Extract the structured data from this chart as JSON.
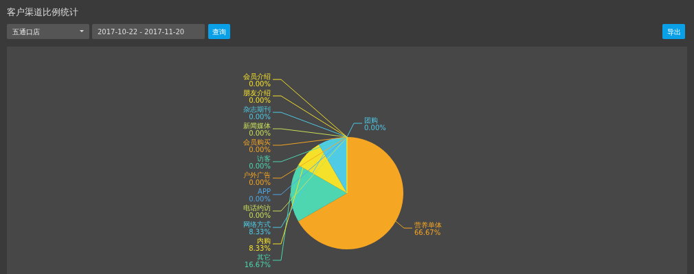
{
  "chart_data": {
    "type": "pie",
    "title": "客户渠道比例统计",
    "annotations": [
      "五通口店",
      "2017-10-22 - 2017-11-20",
      "查询",
      "导出"
    ],
    "categories": [
      "团购",
      "营养单体",
      "其它",
      "内购",
      "网络方式",
      "电话约访",
      "APP",
      "户外广告",
      "访客",
      "会员购买",
      "新闻媒体",
      "杂志期刊",
      "朋友介绍",
      "会员介绍"
    ],
    "values": [
      0,
      66.67,
      16.67,
      8.33,
      8.33,
      0,
      0,
      0,
      0,
      0,
      0,
      0,
      0,
      0
    ],
    "value_labels": [
      "0.00%",
      "66.67%",
      "16.67%",
      "8.33%",
      "8.33%",
      "0.00%",
      "0.00%",
      "0.00%",
      "0.00%",
      "0.00%",
      "0.00%",
      "0.00%",
      "0.00%",
      "0.00%"
    ],
    "colors": [
      "#4fc8e8",
      "#f5a623",
      "#4dd6b0",
      "#f5e12a",
      "#4fcbe6",
      "#c8e05a",
      "#4fa8e6",
      "#f5a623",
      "#4dd6b0",
      "#f5a623",
      "#c8e05a",
      "#4fcbe6",
      "#f5e12a",
      "#f5e12a"
    ]
  }
}
